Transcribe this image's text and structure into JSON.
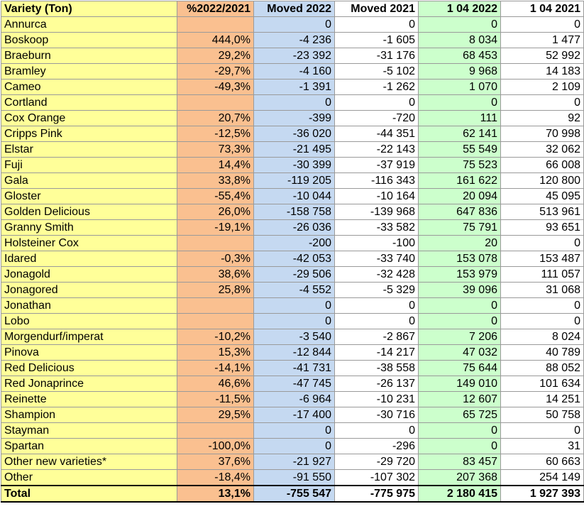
{
  "table": {
    "headers": [
      "Variety (Ton)",
      "%2022/2021",
      "Moved 2022",
      "Moved 2021",
      "1 04 2022",
      "1 04 2021"
    ],
    "column_colors": [
      "#ffff99",
      "#fac090",
      "#c5d9f1",
      "#ffffff",
      "#ccffcc",
      "#ffffff"
    ],
    "rows": [
      [
        "Annurca",
        "",
        "0",
        "0",
        "0",
        "0"
      ],
      [
        "Boskoop",
        "444,0%",
        "-4 236",
        "-1 605",
        "8 034",
        "1 477"
      ],
      [
        "Braeburn",
        "29,2%",
        "-23 392",
        "-31 176",
        "68 453",
        "52 992"
      ],
      [
        "Bramley",
        "-29,7%",
        "-4 160",
        "-5 102",
        "9 968",
        "14 183"
      ],
      [
        "Cameo",
        "-49,3%",
        "-1 391",
        "-1 262",
        "1 070",
        "2 109"
      ],
      [
        "Cortland",
        "",
        "0",
        "0",
        "0",
        "0"
      ],
      [
        "Cox Orange",
        "20,7%",
        "-399",
        "-720",
        "111",
        "92"
      ],
      [
        "Cripps Pink",
        "-12,5%",
        "-36 020",
        "-44 351",
        "62 141",
        "70 998"
      ],
      [
        "Elstar",
        "73,3%",
        "-21 495",
        "-22 143",
        "55 549",
        "32 062"
      ],
      [
        "Fuji",
        "14,4%",
        "-30 399",
        "-37 919",
        "75 523",
        "66 008"
      ],
      [
        "Gala",
        "33,8%",
        "-119 205",
        "-116 343",
        "161 622",
        "120 800"
      ],
      [
        "Gloster",
        "-55,4%",
        "-10 044",
        "-10 164",
        "20 094",
        "45 095"
      ],
      [
        "Golden Delicious",
        "26,0%",
        "-158 758",
        "-139 968",
        "647 836",
        "513 961"
      ],
      [
        "Granny Smith",
        "-19,1%",
        "-26 036",
        "-33 582",
        "75 791",
        "93 651"
      ],
      [
        "Holsteiner Cox",
        "",
        "-200",
        "-100",
        "20",
        "0"
      ],
      [
        "Idared",
        "-0,3%",
        "-42 053",
        "-33 740",
        "153 078",
        "153 487"
      ],
      [
        "Jonagold",
        "38,6%",
        "-29 506",
        "-32 428",
        "153 979",
        "111 057"
      ],
      [
        "Jonagored",
        "25,8%",
        "-4 552",
        "-5 329",
        "39 096",
        "31 068"
      ],
      [
        "Jonathan",
        "",
        "0",
        "0",
        "0",
        "0"
      ],
      [
        "Lobo",
        "",
        "0",
        "0",
        "0",
        "0"
      ],
      [
        "Morgendurf/imperat",
        "-10,2%",
        "-3 540",
        "-2 867",
        "7 206",
        "8 024"
      ],
      [
        "Pinova",
        "15,3%",
        "-12 844",
        "-14 217",
        "47 032",
        "40 789"
      ],
      [
        "Red Delicious",
        "-14,1%",
        "-41 731",
        "-38 558",
        "75 644",
        "88 052"
      ],
      [
        "Red Jonaprince",
        "46,6%",
        "-47 745",
        "-26 137",
        "149 010",
        "101 634"
      ],
      [
        "Reinette",
        "-11,5%",
        "-6 964",
        "-10 231",
        "12 607",
        "14 251"
      ],
      [
        "Shampion",
        "29,5%",
        "-17 400",
        "-30 716",
        "65 725",
        "50 758"
      ],
      [
        "Stayman",
        "",
        "0",
        "0",
        "0",
        "0"
      ],
      [
        "Spartan",
        "-100,0%",
        "0",
        "-296",
        "0",
        "31"
      ],
      [
        "Other new varieties*",
        "37,6%",
        "-21 927",
        "-29 720",
        "83 457",
        "60 663"
      ],
      [
        "Other",
        "-18,4%",
        "-91 550",
        "-107 302",
        "207 368",
        "254 149"
      ]
    ],
    "total": [
      "Total",
      "13,1%",
      "-755 547",
      "-775 975",
      "2 180 415",
      "1 927 393"
    ]
  }
}
